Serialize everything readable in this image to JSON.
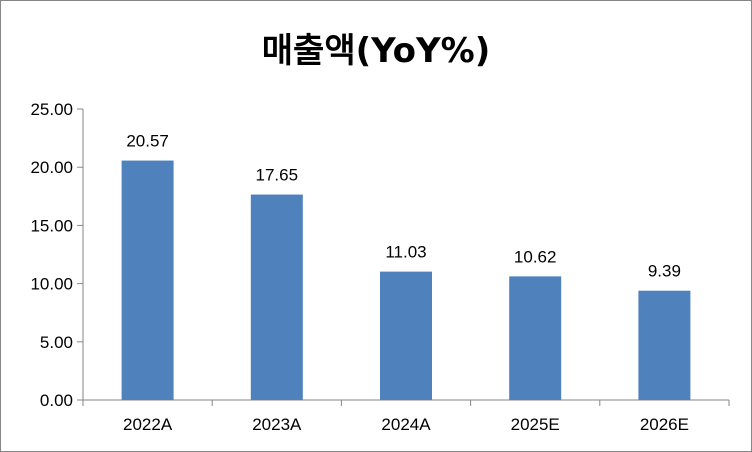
{
  "chart_data": {
    "type": "bar",
    "title": "매출액(YoY%)",
    "categories": [
      "2022A",
      "2023A",
      "2024A",
      "2025E",
      "2026E"
    ],
    "values": [
      20.57,
      17.65,
      11.03,
      10.62,
      9.39
    ],
    "value_labels": [
      "20.57",
      "17.65",
      "11.03",
      "10.62",
      "9.39"
    ],
    "ylim": [
      0,
      25
    ],
    "yticks": [
      0,
      5,
      10,
      15,
      20,
      25
    ],
    "ytick_labels": [
      "0.00",
      "5.00",
      "10.00",
      "15.00",
      "20.00",
      "25.00"
    ],
    "xlabel": "",
    "ylabel": "",
    "grid": false,
    "legend": "none",
    "bar_color": "#4F81BD"
  }
}
